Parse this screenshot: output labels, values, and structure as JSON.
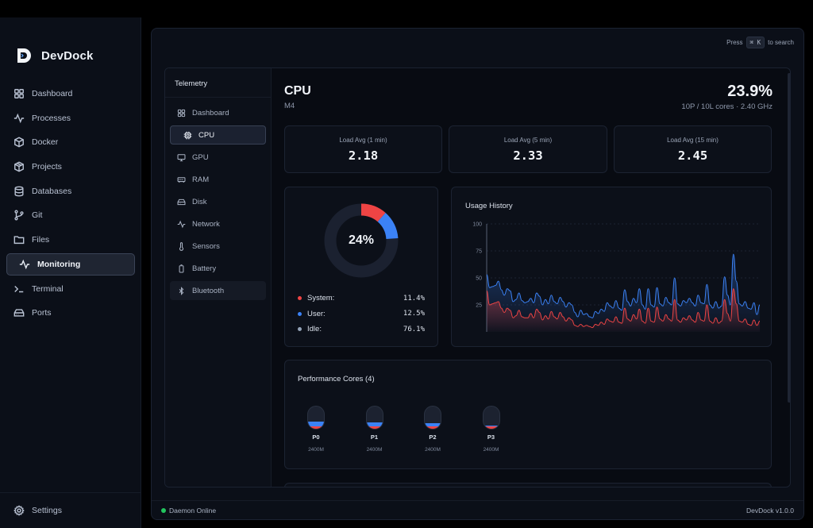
{
  "app": {
    "name": "DevDock",
    "version": "DevDock v1.0.0",
    "status": "Daemon Online",
    "search_press": "Press",
    "search_key1": "⌘",
    "search_key2": "K",
    "search_suffix": "to search"
  },
  "sidebar": {
    "items": [
      {
        "label": "Dashboard",
        "icon": "dashboard-icon"
      },
      {
        "label": "Processes",
        "icon": "activity-icon"
      },
      {
        "label": "Docker",
        "icon": "box-icon"
      },
      {
        "label": "Projects",
        "icon": "package-icon"
      },
      {
        "label": "Databases",
        "icon": "database-icon"
      },
      {
        "label": "Git",
        "icon": "git-branch-icon"
      },
      {
        "label": "Files",
        "icon": "folder-icon"
      },
      {
        "label": "Monitoring",
        "icon": "pulse-icon",
        "active": true
      },
      {
        "label": "Terminal",
        "icon": "terminal-icon"
      },
      {
        "label": "Ports",
        "icon": "ports-icon"
      }
    ],
    "settings_label": "Settings"
  },
  "telemetry": {
    "title": "Telemetry",
    "items": [
      {
        "label": "Dashboard",
        "icon": "dashboard-icon"
      },
      {
        "label": "CPU",
        "icon": "cpu-icon",
        "active": true
      },
      {
        "label": "GPU",
        "icon": "monitor-icon"
      },
      {
        "label": "RAM",
        "icon": "ram-icon"
      },
      {
        "label": "Disk",
        "icon": "hard-drive-icon"
      },
      {
        "label": "Network",
        "icon": "network-icon"
      },
      {
        "label": "Sensors",
        "icon": "thermometer-icon"
      },
      {
        "label": "Battery",
        "icon": "battery-icon"
      },
      {
        "label": "Bluetooth",
        "icon": "bluetooth-icon",
        "hover": true
      }
    ]
  },
  "cpu": {
    "title": "CPU",
    "model": "M4",
    "total_usage": "23.9%",
    "cores_info": "10P / 10L cores · 2.40 GHz",
    "load": [
      {
        "label": "Load Avg (1 min)",
        "value": "2.18"
      },
      {
        "label": "Load Avg (5 min)",
        "value": "2.33"
      },
      {
        "label": "Load Avg (15 min)",
        "value": "2.45"
      }
    ],
    "donut": {
      "percent_label": "24%",
      "system_fraction": 0.114,
      "user_fraction": 0.125,
      "colors": {
        "system": "#ef4444",
        "user": "#3b82f6",
        "idle": "#1b2130"
      }
    },
    "legend": [
      {
        "name": "System:",
        "value": "11.4%",
        "color": "#ef4444"
      },
      {
        "name": "User:",
        "value": "12.5%",
        "color": "#3b82f6"
      },
      {
        "name": "Idle:",
        "value": "76.1%",
        "color": "#94a3b8"
      }
    ],
    "performance": {
      "title": "Performance Cores (4)",
      "cores": [
        {
          "name": "P0",
          "freq": "2400M",
          "user": 0.2,
          "system": 0.12
        },
        {
          "name": "P1",
          "freq": "2400M",
          "user": 0.18,
          "system": 0.12
        },
        {
          "name": "P2",
          "freq": "2400M",
          "user": 0.12,
          "system": 0.12
        },
        {
          "name": "P3",
          "freq": "2400M",
          "user": 0.06,
          "system": 0.1
        }
      ]
    }
  },
  "chart_data": {
    "type": "area",
    "title": "Usage History",
    "ylim": [
      0,
      100
    ],
    "yticks": [
      "100",
      "75",
      "50",
      "25"
    ],
    "grid": true,
    "series": [
      {
        "color": "#3b82f6",
        "values": [
          53,
          41,
          42,
          43,
          47,
          39,
          34,
          40,
          38,
          28,
          30,
          36,
          29,
          27,
          28,
          31,
          27,
          36,
          33,
          25,
          30,
          26,
          34,
          28,
          26,
          32,
          28,
          23,
          27,
          25,
          18,
          14,
          20,
          16,
          17,
          14,
          13,
          19,
          17,
          21,
          19,
          27,
          24,
          22,
          29,
          22,
          20,
          39,
          28,
          24,
          31,
          27,
          40,
          25,
          21,
          40,
          25,
          23,
          41,
          26,
          24,
          32,
          27,
          25,
          50,
          26,
          24,
          29,
          27,
          31,
          27,
          24,
          34,
          27,
          26,
          44,
          25,
          22,
          28,
          22,
          24,
          51,
          34,
          25,
          72,
          47,
          26,
          24,
          28,
          22,
          21,
          27,
          16,
          25
        ]
      },
      {
        "color": "#ef4444",
        "values": [
          38,
          25,
          26,
          27,
          28,
          22,
          18,
          22,
          20,
          13,
          15,
          20,
          14,
          13,
          13,
          17,
          13,
          21,
          18,
          11,
          15,
          12,
          19,
          14,
          12,
          18,
          14,
          10,
          13,
          11,
          6,
          5,
          7,
          5,
          6,
          5,
          4,
          7,
          6,
          9,
          7,
          12,
          10,
          9,
          14,
          9,
          8,
          22,
          12,
          10,
          16,
          12,
          21,
          10,
          8,
          22,
          10,
          9,
          23,
          12,
          10,
          16,
          12,
          10,
          30,
          11,
          9,
          13,
          11,
          15,
          11,
          9,
          18,
          11,
          10,
          25,
          10,
          8,
          13,
          8,
          10,
          30,
          17,
          10,
          40,
          26,
          10,
          9,
          12,
          7,
          6,
          11,
          6,
          10
        ]
      }
    ]
  }
}
